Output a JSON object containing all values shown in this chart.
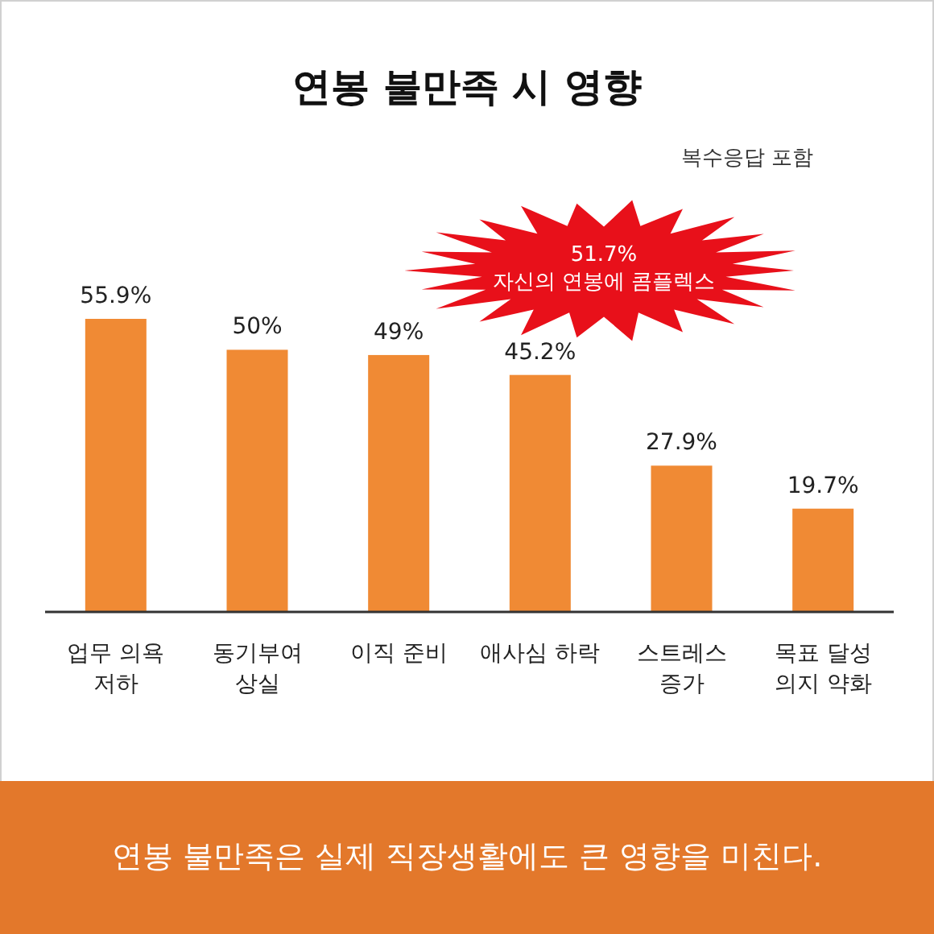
{
  "chart_data": {
    "type": "bar",
    "title": "연봉 불만족 시 영향",
    "categories": [
      "업무 의욕\n저하",
      "동기부여\n상실",
      "이직 준비",
      "애사심 하락",
      "스트레스\n증가",
      "목표 달성\n의지 약화"
    ],
    "values": [
      55.9,
      50,
      49,
      45.2,
      27.9,
      19.7
    ],
    "value_labels": [
      "55.9%",
      "50%",
      "49%",
      "45.2%",
      "27.9%",
      "19.7%"
    ],
    "color": "#f08a34",
    "annotations": [
      "복수응답 포함",
      "51.7%\n자신의 연봉에 콤플렉스",
      "연봉 불만족은 실제 직장생활에도 큰 영향을 미친다."
    ]
  }
}
